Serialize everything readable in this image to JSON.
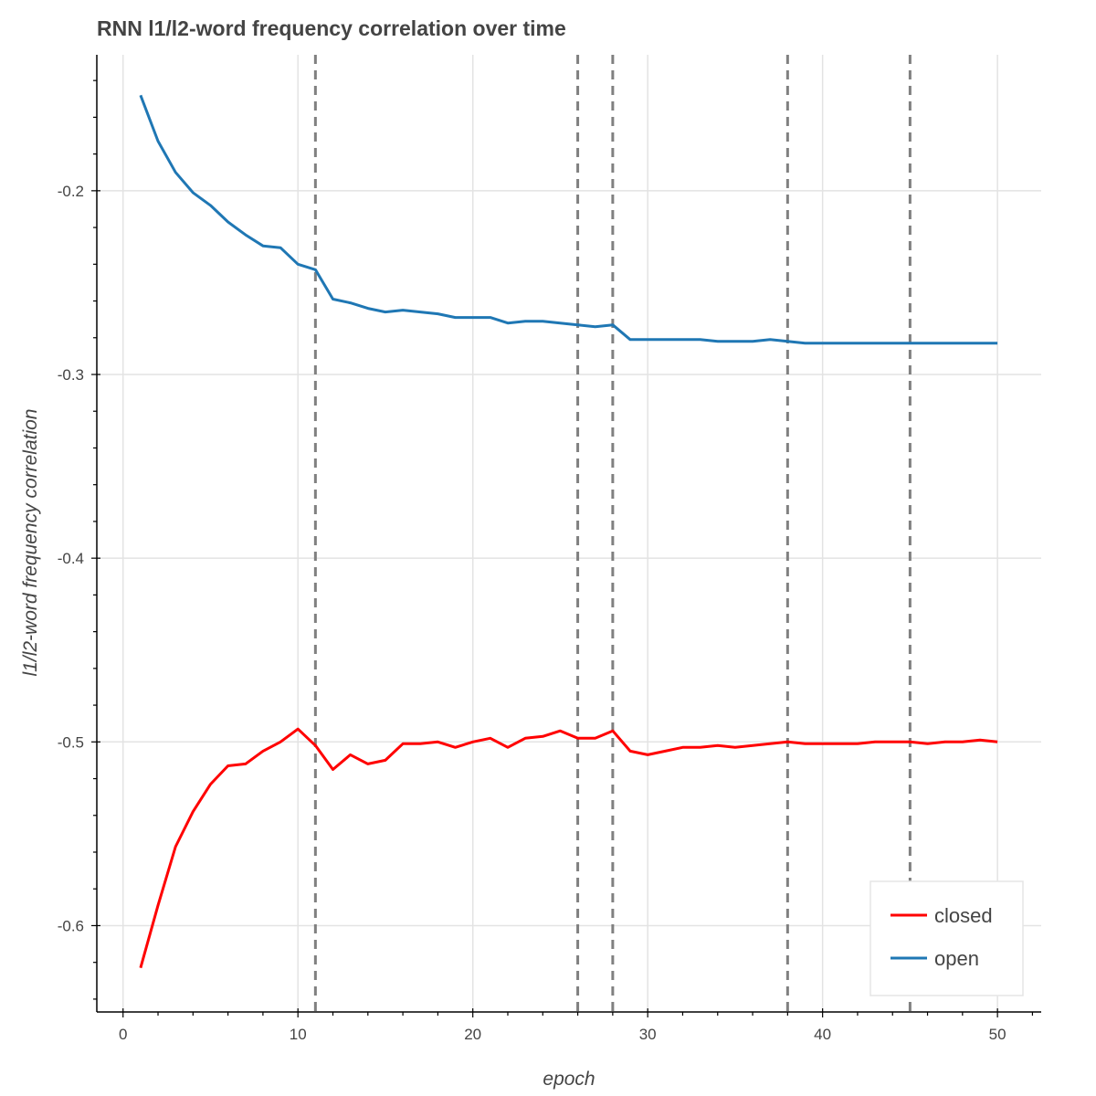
{
  "chart_data": {
    "type": "line",
    "title": "RNN l1/l2-word frequency correlation over time",
    "xlabel": "epoch",
    "ylabel": "l1/l2-word frequency correlation",
    "xlim": [
      -1.5,
      52.5
    ],
    "ylim": [
      -0.647,
      -0.126
    ],
    "x_ticks": [
      0,
      10,
      20,
      30,
      40,
      50
    ],
    "x_tick_labels": [
      "0",
      "10",
      "20",
      "30",
      "40",
      "50"
    ],
    "y_ticks": [
      -0.2,
      -0.3,
      -0.4,
      -0.5,
      -0.6
    ],
    "y_tick_labels": [
      "-0.2",
      "-0.3",
      "-0.4",
      "-0.5",
      "-0.6"
    ],
    "grid": true,
    "legend_position": "bottom-right",
    "vertical_dashed_lines": [
      11,
      26,
      28,
      38,
      45
    ],
    "x": [
      1,
      2,
      3,
      4,
      5,
      6,
      7,
      8,
      9,
      10,
      11,
      12,
      13,
      14,
      15,
      16,
      17,
      18,
      19,
      20,
      21,
      22,
      23,
      24,
      25,
      26,
      27,
      28,
      29,
      30,
      31,
      32,
      33,
      34,
      35,
      36,
      37,
      38,
      39,
      40,
      41,
      42,
      43,
      44,
      45,
      46,
      47,
      48,
      49,
      50
    ],
    "series": [
      {
        "name": "closed",
        "color": "#ff0000",
        "values": [
          -0.623,
          -0.589,
          -0.557,
          -0.538,
          -0.523,
          -0.513,
          -0.512,
          -0.505,
          -0.5,
          -0.493,
          -0.502,
          -0.515,
          -0.507,
          -0.512,
          -0.51,
          -0.501,
          -0.501,
          -0.5,
          -0.503,
          -0.5,
          -0.498,
          -0.503,
          -0.498,
          -0.497,
          -0.494,
          -0.498,
          -0.498,
          -0.494,
          -0.505,
          -0.507,
          -0.505,
          -0.503,
          -0.503,
          -0.502,
          -0.503,
          -0.502,
          -0.501,
          -0.5,
          -0.501,
          -0.501,
          -0.501,
          -0.501,
          -0.5,
          -0.5,
          -0.5,
          -0.501,
          -0.5,
          -0.5,
          -0.499,
          -0.5
        ]
      },
      {
        "name": "open",
        "color": "#1f77b4",
        "values": [
          -0.148,
          -0.173,
          -0.19,
          -0.201,
          -0.208,
          -0.217,
          -0.224,
          -0.23,
          -0.231,
          -0.24,
          -0.243,
          -0.259,
          -0.261,
          -0.264,
          -0.266,
          -0.265,
          -0.266,
          -0.267,
          -0.269,
          -0.269,
          -0.269,
          -0.272,
          -0.271,
          -0.271,
          -0.272,
          -0.273,
          -0.274,
          -0.273,
          -0.281,
          -0.281,
          -0.281,
          -0.281,
          -0.281,
          -0.282,
          -0.282,
          -0.282,
          -0.281,
          -0.282,
          -0.283,
          -0.283,
          -0.283,
          -0.283,
          -0.283,
          -0.283,
          -0.283,
          -0.283,
          -0.283,
          -0.283,
          -0.283,
          -0.283
        ]
      }
    ]
  }
}
